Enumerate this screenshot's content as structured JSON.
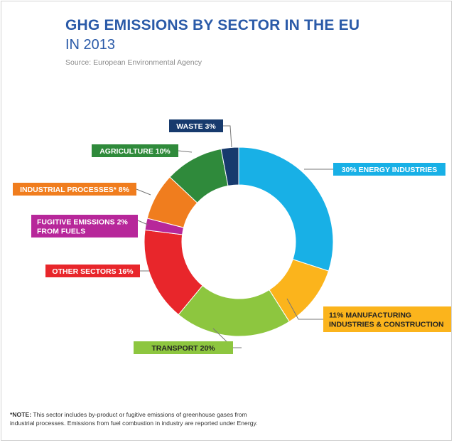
{
  "header": {
    "title": "GHG EMISSIONS BY SECTOR IN THE EU",
    "subtitle": "IN 2013",
    "source": "Source: European Environmental Agency"
  },
  "note": {
    "label": "*NOTE:",
    "text": "This sector includes by-product or fugitive emissions of greenhouse gases from industrial processes. Emissions from fuel combustion in industry are reported under Energy."
  },
  "chart_data": {
    "type": "pie",
    "style": "donut",
    "unit": "%",
    "slices": [
      {
        "key": "energy",
        "label_lines": [
          "30% ENERGY INDUSTRIES"
        ],
        "value": 30,
        "color": "#18b0e6",
        "text_color": "#ffffff"
      },
      {
        "key": "manufacturing",
        "label_lines": [
          "11% MANUFACTURING",
          "INDUSTRIES & CONSTRUCTION"
        ],
        "value": 11,
        "color": "#fbb41c",
        "text_color": "#222222"
      },
      {
        "key": "transport",
        "label_lines": [
          "TRANSPORT  20%"
        ],
        "value": 20,
        "color": "#8dc63f",
        "text_color": "#222222"
      },
      {
        "key": "other",
        "label_lines": [
          "OTHER SECTORS 16%"
        ],
        "value": 16,
        "color": "#e8262b",
        "text_color": "#ffffff"
      },
      {
        "key": "fugitive",
        "label_lines": [
          "FUGITIVE EMISSIONS  2%",
          "FROM FUELS"
        ],
        "value": 2,
        "color": "#b7279a",
        "text_color": "#ffffff"
      },
      {
        "key": "industrial",
        "label_lines": [
          "INDUSTRIAL PROCESSES*  8%"
        ],
        "value": 8,
        "color": "#f07d1e",
        "text_color": "#ffffff"
      },
      {
        "key": "agriculture",
        "label_lines": [
          "AGRICULTURE 10%"
        ],
        "value": 10,
        "color": "#2f8a3b",
        "text_color": "#ffffff"
      },
      {
        "key": "waste",
        "label_lines": [
          "WASTE  3%"
        ],
        "value": 3,
        "color": "#173a6d",
        "text_color": "#ffffff"
      }
    ]
  }
}
